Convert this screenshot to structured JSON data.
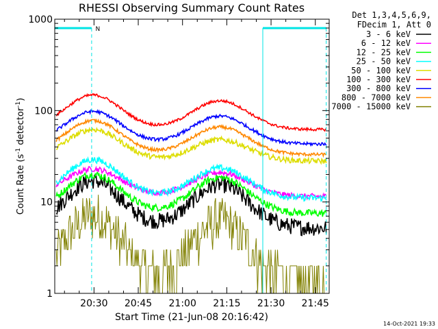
{
  "chart_data": {
    "type": "line",
    "title": "RHESSI Observing Summary Count Rates",
    "xlabel": "Start Time (21-Jun-08 20:16:42)",
    "ylabel_main": "Count Rate (s",
    "ylabel_sup1": "-1",
    "ylabel_mid": " detector",
    "ylabel_sup2": "-1",
    "ylabel_end": ")",
    "y_scale": "log",
    "ylim": [
      1,
      1000
    ],
    "x_range_minutes": [
      0,
      93
    ],
    "x_ticks": [
      {
        "label": "20:30",
        "minute": 13.3
      },
      {
        "label": "20:45",
        "minute": 28.3
      },
      {
        "label": "21:00",
        "minute": 43.3
      },
      {
        "label": "21:15",
        "minute": 58.3
      },
      {
        "label": "21:30",
        "minute": 73.3
      },
      {
        "label": "21:45",
        "minute": 88.3
      }
    ],
    "y_ticks": [
      {
        "label": "1",
        "value": 1
      },
      {
        "label": "10",
        "value": 10
      },
      {
        "label": "100",
        "value": 100
      },
      {
        "label": "1000",
        "value": 1000
      }
    ],
    "legend_header": [
      "Det 1,3,4,5,6,9,",
      "FDecim 1, Att 0"
    ],
    "series": [
      {
        "name": "3 - 6 keV",
        "color": "#000000",
        "base": 5.2,
        "peak1": 17,
        "peak2": 15.5,
        "noise": 0.18
      },
      {
        "name": "6 - 12 keV",
        "color": "#ff00ff",
        "base": 11.5,
        "peak1": 23,
        "peak2": 21,
        "noise": 0.06
      },
      {
        "name": "12 - 25 keV",
        "color": "#00ff00",
        "base": 7.5,
        "peak1": 20,
        "peak2": 18.5,
        "noise": 0.08
      },
      {
        "name": "25 - 50 keV",
        "color": "#00ffff",
        "base": 11,
        "peak1": 29,
        "peak2": 23.5,
        "noise": 0.07
      },
      {
        "name": "50 - 100 keV",
        "color": "#dddd00",
        "base": 28,
        "peak1": 62,
        "peak2": 48,
        "noise": 0.06
      },
      {
        "name": "100 - 300 keV",
        "color": "#ff0000",
        "base": 62,
        "peak1": 148,
        "peak2": 128,
        "noise": 0.03
      },
      {
        "name": "300 - 800 keV",
        "color": "#0000ff",
        "base": 43,
        "peak1": 98,
        "peak2": 87,
        "noise": 0.035
      },
      {
        "name": "800 - 7000 keV",
        "color": "#ff8800",
        "base": 33,
        "peak1": 78,
        "peak2": 66,
        "noise": 0.035
      },
      {
        "name": "7000 - 15000 keV",
        "color": "#808000",
        "base": 1.3,
        "peak1": 7.2,
        "peak2": 6.2,
        "noise": 0.5
      }
    ],
    "saa_markers": [
      {
        "from_minute": 0,
        "to_minute": 12.5,
        "letter": "N"
      },
      {
        "from_minute": 70.5,
        "to_minute": 92,
        "letter": ""
      }
    ],
    "footer": "14-Oct-2021 19:33"
  }
}
